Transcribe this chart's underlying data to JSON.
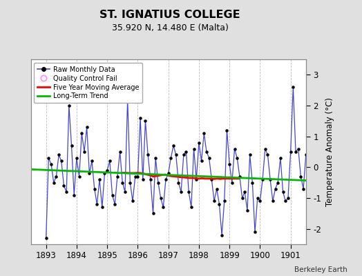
{
  "title": "ST. IGNATIUS COLLEGE",
  "subtitle": "35.920 N, 14.480 E (Malta)",
  "ylabel": "Temperature Anomaly (°C)",
  "credit": "Berkeley Earth",
  "xlim": [
    1892.5,
    1901.5
  ],
  "ylim": [
    -2.5,
    3.5
  ],
  "yticks": [
    -2,
    -1,
    0,
    1,
    2,
    3
  ],
  "xticks": [
    1893,
    1894,
    1895,
    1896,
    1897,
    1898,
    1899,
    1900,
    1901
  ],
  "bg_color": "#e0e0e0",
  "plot_bg_color": "#ffffff",
  "raw_color": "#4444cc",
  "raw_dot_color": "#000000",
  "moving_avg_color": "#ff0000",
  "trend_color": "#00bb00",
  "raw_data": {
    "x": [
      1893.0,
      1893.083,
      1893.167,
      1893.25,
      1893.333,
      1893.417,
      1893.5,
      1893.583,
      1893.667,
      1893.75,
      1893.833,
      1893.917,
      1894.0,
      1894.083,
      1894.167,
      1894.25,
      1894.333,
      1894.417,
      1894.5,
      1894.583,
      1894.667,
      1894.75,
      1894.833,
      1894.917,
      1895.0,
      1895.083,
      1895.167,
      1895.25,
      1895.333,
      1895.417,
      1895.5,
      1895.583,
      1895.667,
      1895.75,
      1895.833,
      1895.917,
      1896.0,
      1896.083,
      1896.167,
      1896.25,
      1896.333,
      1896.417,
      1896.5,
      1896.583,
      1896.667,
      1896.75,
      1896.833,
      1896.917,
      1897.0,
      1897.083,
      1897.167,
      1897.25,
      1897.333,
      1897.417,
      1897.5,
      1897.583,
      1897.667,
      1897.75,
      1897.833,
      1897.917,
      1898.0,
      1898.083,
      1898.167,
      1898.25,
      1898.333,
      1898.417,
      1898.5,
      1898.583,
      1898.667,
      1898.75,
      1898.833,
      1898.917,
      1899.0,
      1899.083,
      1899.167,
      1899.25,
      1899.333,
      1899.417,
      1899.5,
      1899.583,
      1899.667,
      1899.75,
      1899.833,
      1899.917,
      1900.0,
      1900.083,
      1900.167,
      1900.25,
      1900.333,
      1900.417,
      1900.5,
      1900.583,
      1900.667,
      1900.75,
      1900.833,
      1900.917,
      1901.0,
      1901.083,
      1901.167,
      1901.25,
      1901.333,
      1901.417,
      1901.5
    ],
    "y": [
      -2.3,
      0.3,
      0.1,
      -0.5,
      -0.3,
      0.4,
      0.2,
      -0.6,
      -0.8,
      2.0,
      0.7,
      -0.9,
      0.3,
      -0.3,
      1.1,
      0.5,
      1.3,
      -0.2,
      0.2,
      -0.7,
      -1.2,
      -0.4,
      -1.3,
      -0.2,
      -0.1,
      0.2,
      -0.9,
      -1.2,
      -0.3,
      0.5,
      -0.5,
      -0.8,
      2.2,
      -0.5,
      -1.1,
      -0.3,
      -0.3,
      1.6,
      -0.4,
      1.5,
      0.4,
      -0.4,
      -1.5,
      0.3,
      -0.5,
      -1.0,
      -1.3,
      -0.4,
      -0.2,
      0.3,
      0.7,
      0.4,
      -0.5,
      -0.8,
      0.4,
      0.5,
      -0.8,
      -1.3,
      0.6,
      -0.4,
      0.8,
      0.2,
      1.1,
      0.5,
      0.3,
      -0.4,
      -1.1,
      -0.7,
      -1.2,
      -2.2,
      -1.1,
      1.2,
      0.1,
      -0.5,
      0.6,
      0.3,
      -0.3,
      -1.0,
      -0.8,
      -1.4,
      0.4,
      -0.5,
      -2.1,
      -1.0,
      -1.1,
      -0.4,
      0.6,
      0.4,
      -0.4,
      -1.1,
      -0.7,
      -0.5,
      0.3,
      -0.8,
      -1.1,
      -1.0,
      0.5,
      2.6,
      0.5,
      0.6,
      -0.3,
      -0.7,
      0.4
    ]
  },
  "moving_avg": {
    "x": [
      1895.5,
      1895.6,
      1895.7,
      1895.8,
      1895.9,
      1896.0,
      1896.1,
      1896.2,
      1896.3,
      1896.4,
      1896.5,
      1896.6,
      1896.7,
      1896.8,
      1896.9,
      1897.0,
      1897.1,
      1897.2,
      1897.3,
      1897.4,
      1897.5,
      1897.6,
      1897.7,
      1897.8,
      1897.9,
      1898.0,
      1898.1,
      1898.2,
      1898.3,
      1898.4,
      1898.5,
      1898.6,
      1898.7,
      1898.8,
      1898.9,
      1899.0,
      1899.1,
      1899.2,
      1899.3
    ],
    "y": [
      -0.18,
      -0.18,
      -0.19,
      -0.19,
      -0.19,
      -0.18,
      -0.19,
      -0.21,
      -0.24,
      -0.26,
      -0.3,
      -0.29,
      -0.27,
      -0.25,
      -0.24,
      -0.27,
      -0.29,
      -0.3,
      -0.31,
      -0.32,
      -0.33,
      -0.34,
      -0.35,
      -0.35,
      -0.36,
      -0.37,
      -0.36,
      -0.37,
      -0.37,
      -0.37,
      -0.38,
      -0.37,
      -0.38,
      -0.37,
      -0.37,
      -0.37,
      -0.37,
      -0.37,
      -0.37
    ]
  },
  "trend": {
    "x": [
      1892.5,
      1901.5
    ],
    "y": [
      -0.07,
      -0.43
    ]
  }
}
